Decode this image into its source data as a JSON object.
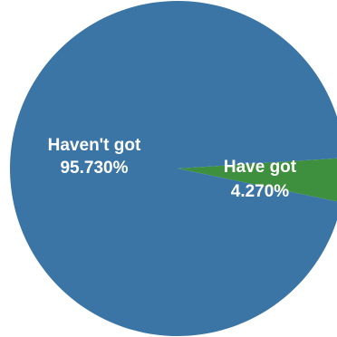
{
  "chart_data": {
    "type": "pie",
    "slices": [
      {
        "label": "Haven't got",
        "value": 95.73,
        "value_label": "95.730%",
        "color": "#3a75a5"
      },
      {
        "label": "Have got",
        "value": 4.27,
        "value_label": "4.270%",
        "color": "#3e8f3e"
      }
    ],
    "legend": "none",
    "title": ""
  }
}
